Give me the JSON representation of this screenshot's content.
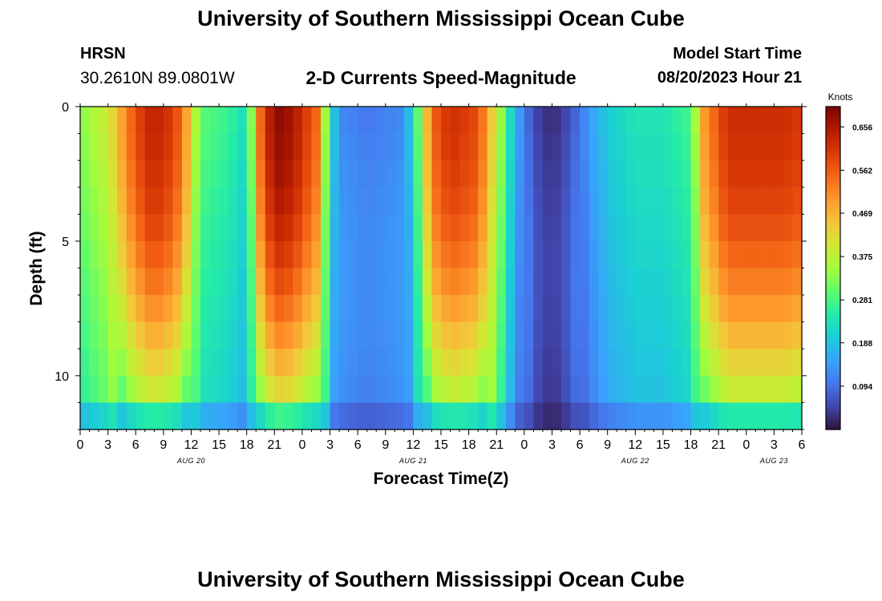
{
  "header": {
    "title": "University of Southern Mississippi Ocean Cube",
    "station": "HRSN",
    "coordinates": "30.2610N  89.0801W",
    "plot_title": "2-D Currents Speed-Magnitude",
    "model_start_label": "Model Start Time",
    "model_start_value": "08/20/2023 Hour 21"
  },
  "footer": {
    "title": "University of Southern Mississippi Ocean Cube"
  },
  "chart_data": {
    "type": "heatmap",
    "xlabel": "Forecast Time(Z)",
    "ylabel": "Depth (ft)",
    "colorbar_label": "Knots",
    "x_tick_labels": [
      "0",
      "3",
      "6",
      "9",
      "12",
      "15",
      "18",
      "21",
      "0",
      "3",
      "6",
      "9",
      "12",
      "15",
      "18",
      "21",
      "0",
      "3",
      "6",
      "9",
      "12",
      "15",
      "18",
      "21",
      "0",
      "3",
      "6"
    ],
    "date_labels": [
      {
        "label": "AUG 20",
        "hour_index": 12
      },
      {
        "label": "AUG 21",
        "hour_index": 36
      },
      {
        "label": "AUG 22",
        "hour_index": 60
      },
      {
        "label": "AUG 23",
        "hour_index": 75
      }
    ],
    "x_range_hours": [
      0,
      78
    ],
    "y_ticks": [
      0,
      5,
      10
    ],
    "y_range_ft": [
      0,
      12
    ],
    "colorbar_ticks": [
      0.094,
      0.188,
      0.281,
      0.375,
      0.469,
      0.562,
      0.656
    ],
    "color_range": [
      0.0,
      0.7
    ],
    "depth_rows": 12,
    "surface_speed_by_hour": [
      [
        0,
        0.33
      ],
      [
        3,
        0.4
      ],
      [
        6,
        0.58
      ],
      [
        7.5,
        0.63
      ],
      [
        9,
        0.63
      ],
      [
        11,
        0.55
      ],
      [
        13,
        0.3
      ],
      [
        16,
        0.27
      ],
      [
        18,
        0.22
      ],
      [
        19.5,
        0.55
      ],
      [
        21,
        0.69
      ],
      [
        23,
        0.66
      ],
      [
        25.5,
        0.55
      ],
      [
        27,
        0.25
      ],
      [
        28,
        0.12
      ],
      [
        31,
        0.1
      ],
      [
        35,
        0.12
      ],
      [
        36.5,
        0.3
      ],
      [
        38,
        0.55
      ],
      [
        40,
        0.62
      ],
      [
        43,
        0.58
      ],
      [
        45,
        0.4
      ],
      [
        47,
        0.17
      ],
      [
        49,
        0.05
      ],
      [
        51,
        0.02
      ],
      [
        53,
        0.06
      ],
      [
        55,
        0.14
      ],
      [
        57,
        0.2
      ],
      [
        60,
        0.24
      ],
      [
        63,
        0.24
      ],
      [
        66,
        0.28
      ],
      [
        67.5,
        0.5
      ],
      [
        70,
        0.62
      ],
      [
        73,
        0.62
      ],
      [
        76,
        0.62
      ],
      [
        78,
        0.6
      ]
    ]
  }
}
